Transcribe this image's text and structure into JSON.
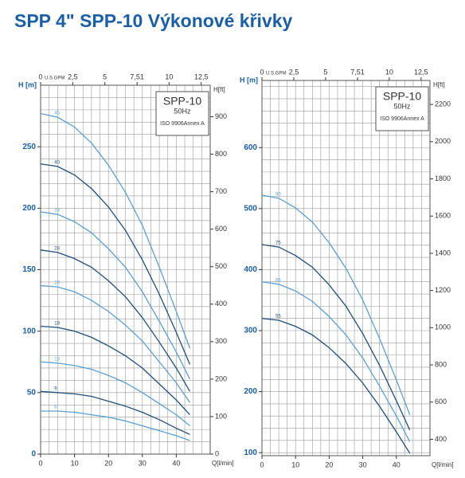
{
  "title": "SPP 4\" SPP-10 Výkonové křivky",
  "chart_data": [
    {
      "type": "line",
      "xlabel": "Q[l/min]",
      "ylabel": "H [m]",
      "y2label": "H[ft]",
      "x2label": "U.S.GPM",
      "annotations": [
        "SPP-10",
        "50Hz",
        "ISO 9906Annex A"
      ],
      "xlim": [
        0,
        50
      ],
      "xticks": [
        0,
        10,
        20,
        30,
        40
      ],
      "x2lim": [
        0,
        13.2
      ],
      "x2ticks": [
        0,
        {
          "value": 2.5,
          "label": "2,5"
        },
        5,
        {
          "value": 7.51,
          "label": "7,51"
        },
        10,
        {
          "value": 12.5,
          "label": "12,5"
        }
      ],
      "ylim": [
        0,
        300
      ],
      "yticks": [
        0,
        50,
        100,
        150,
        200,
        250
      ],
      "y2lim": [
        0,
        984
      ],
      "y2ticks": [
        0,
        100,
        200,
        300,
        400,
        500,
        600,
        700,
        800,
        900
      ],
      "grid": true,
      "minor_grid": {
        "x": 2.5,
        "y": 10
      },
      "x": [
        0,
        5,
        10,
        15,
        20,
        25,
        30,
        35,
        40,
        44
      ],
      "series": [
        {
          "name": "45",
          "color": "#5a9fd4",
          "values": [
            277,
            274,
            266,
            253,
            235,
            213,
            186,
            152,
            116,
            86
          ]
        },
        {
          "name": "40",
          "color": "#1f4e79",
          "values": [
            236,
            234,
            227,
            216,
            201,
            182,
            158,
            130,
            99,
            73
          ]
        },
        {
          "name": "33",
          "color": "#5a9fd4",
          "values": [
            197,
            195,
            189,
            180,
            167,
            152,
            132,
            108,
            83,
            61
          ]
        },
        {
          "name": "28",
          "color": "#1f4e79",
          "values": [
            166,
            164,
            159,
            152,
            141,
            128,
            111,
            91,
            70,
            51
          ]
        },
        {
          "name": "23",
          "color": "#5a9fd4",
          "values": [
            137,
            136,
            132,
            125,
            116,
            105,
            92,
            75,
            58,
            42
          ]
        },
        {
          "name": "18",
          "color": "#1f4e79",
          "values": [
            104,
            103,
            100,
            95,
            88,
            80,
            70,
            57,
            44,
            32
          ]
        },
        {
          "name": "13",
          "color": "#5a9fd4",
          "values": [
            75,
            74,
            72,
            69,
            64,
            58,
            50,
            41,
            32,
            23
          ]
        },
        {
          "name": "9",
          "color": "#1f4e79",
          "values": [
            51,
            50,
            49,
            47,
            43,
            39,
            34,
            28,
            21,
            16
          ]
        },
        {
          "name": "6",
          "color": "#5a9fd4",
          "values": [
            35,
            35,
            34,
            32,
            30,
            27,
            23,
            19,
            15,
            11
          ]
        }
      ]
    },
    {
      "type": "line",
      "xlabel": "Q[l/min]",
      "ylabel": "H [m]",
      "y2label": "H[ft]",
      "x2label": "U.S.GPM",
      "annotations": [
        "SPP-10",
        "50Hz",
        "ISO 9906Annex A"
      ],
      "xlim": [
        0,
        50
      ],
      "xticks": [
        0,
        10,
        20,
        30,
        40
      ],
      "x2lim": [
        0,
        13.2
      ],
      "x2ticks": [
        0,
        {
          "value": 2.5,
          "label": "2,5"
        },
        5,
        {
          "value": 7.51,
          "label": "7,51"
        },
        10,
        {
          "value": 12.5,
          "label": "12,5"
        }
      ],
      "ylim": [
        95,
        710
      ],
      "yticks": [
        100,
        200,
        300,
        400,
        500,
        600
      ],
      "y2lim": [
        312,
        2329
      ],
      "y2ticks": [
        400,
        600,
        800,
        1000,
        1200,
        1400,
        1600,
        1800,
        2000,
        2200
      ],
      "grid": true,
      "minor_grid": {
        "x": 2.5,
        "y": 20
      },
      "x": [
        0,
        5,
        10,
        15,
        20,
        25,
        30,
        35,
        40,
        44
      ],
      "series": [
        {
          "name": "90",
          "color": "#5a9fd4",
          "values": [
            522,
            517,
            501,
            478,
            444,
            402,
            350,
            287,
            219,
            162
          ]
        },
        {
          "name": "75",
          "color": "#1f4e79",
          "values": [
            441,
            437,
            423,
            404,
            375,
            340,
            295,
            243,
            185,
            137
          ]
        },
        {
          "name": "65",
          "color": "#5a9fd4",
          "values": [
            380,
            376,
            365,
            348,
            323,
            293,
            255,
            209,
            160,
            118
          ]
        },
        {
          "name": "55",
          "color": "#1f4e79",
          "values": [
            320,
            317,
            307,
            293,
            272,
            246,
            214,
            176,
            134,
            99
          ]
        }
      ]
    }
  ]
}
